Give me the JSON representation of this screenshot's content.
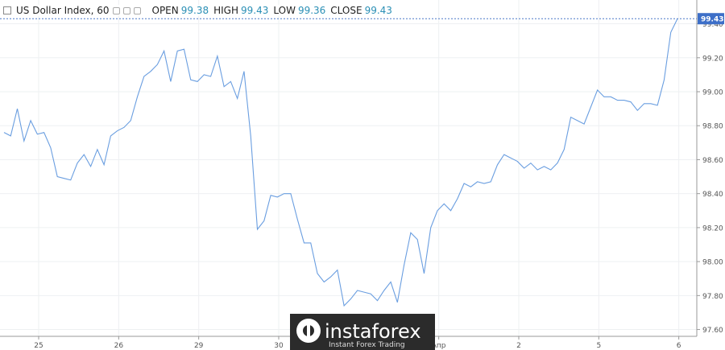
{
  "chart_data": {
    "type": "line",
    "title": "US Dollar Index, 60",
    "ohlc": [
      {
        "label": "OPEN",
        "value": 99.38
      },
      {
        "label": "HIGH",
        "value": 99.43
      },
      {
        "label": "LOW",
        "value": 99.36
      },
      {
        "label": "CLOSE",
        "value": 99.43
      }
    ],
    "series": [
      {
        "name": "US Dollar Index",
        "color": "#6a9ee0",
        "values": [
          98.76,
          98.74,
          98.9,
          98.71,
          98.83,
          98.75,
          98.76,
          98.67,
          98.5,
          98.49,
          98.48,
          98.58,
          98.63,
          98.56,
          98.66,
          98.57,
          98.74,
          98.77,
          98.79,
          98.83,
          98.97,
          99.09,
          99.12,
          99.16,
          99.24,
          99.06,
          99.24,
          99.25,
          99.07,
          99.06,
          99.1,
          99.09,
          99.21,
          99.03,
          99.06,
          98.96,
          99.12,
          98.74,
          98.19,
          98.24,
          98.39,
          98.38,
          98.4,
          98.4,
          98.25,
          98.11,
          98.11,
          97.93,
          97.88,
          97.91,
          97.95,
          97.74,
          97.78,
          97.83,
          97.82,
          97.81,
          97.77,
          97.83,
          97.88,
          97.76,
          97.98,
          98.17,
          98.13,
          97.93,
          98.2,
          98.3,
          98.34,
          98.3,
          98.37,
          98.46,
          98.44,
          98.47,
          98.46,
          98.47,
          98.57,
          98.63,
          98.61,
          98.59,
          98.55,
          98.58,
          98.54,
          98.56,
          98.54,
          98.58,
          98.66,
          98.85,
          98.83,
          98.81,
          98.91,
          99.01,
          98.97,
          98.97,
          98.95,
          98.95,
          98.94,
          98.89,
          98.93,
          98.93,
          98.92,
          99.07,
          99.35,
          99.43
        ]
      }
    ],
    "xlim": [
      -0.6,
      103.9
    ],
    "xticks": [
      {
        "value": 5.2,
        "label": "25"
      },
      {
        "value": 17.2,
        "label": "26"
      },
      {
        "value": 29.2,
        "label": "29"
      },
      {
        "value": 41.2,
        "label": "30"
      },
      {
        "value": 65.2,
        "label": "Апр"
      },
      {
        "value": 77.2,
        "label": "2"
      },
      {
        "value": 89.2,
        "label": "5"
      },
      {
        "value": 101.2,
        "label": "6"
      }
    ],
    "ylim": [
      97.56,
      99.54
    ],
    "yticks": [
      {
        "value": 97.6,
        "label": "97.60"
      },
      {
        "value": 97.8,
        "label": "97.80"
      },
      {
        "value": 98.0,
        "label": "98.00"
      },
      {
        "value": 98.2,
        "label": "98.20"
      },
      {
        "value": 98.4,
        "label": "98.40"
      },
      {
        "value": 98.6,
        "label": "98.60"
      },
      {
        "value": 98.8,
        "label": "98.80"
      },
      {
        "value": 99.0,
        "label": "99.00"
      },
      {
        "value": 99.2,
        "label": "99.20"
      },
      {
        "value": 99.4,
        "label": "99.40"
      }
    ],
    "grid": true,
    "watermark": {
      "brand": "instaforex",
      "tagline": "Instant Forex Trading"
    }
  }
}
